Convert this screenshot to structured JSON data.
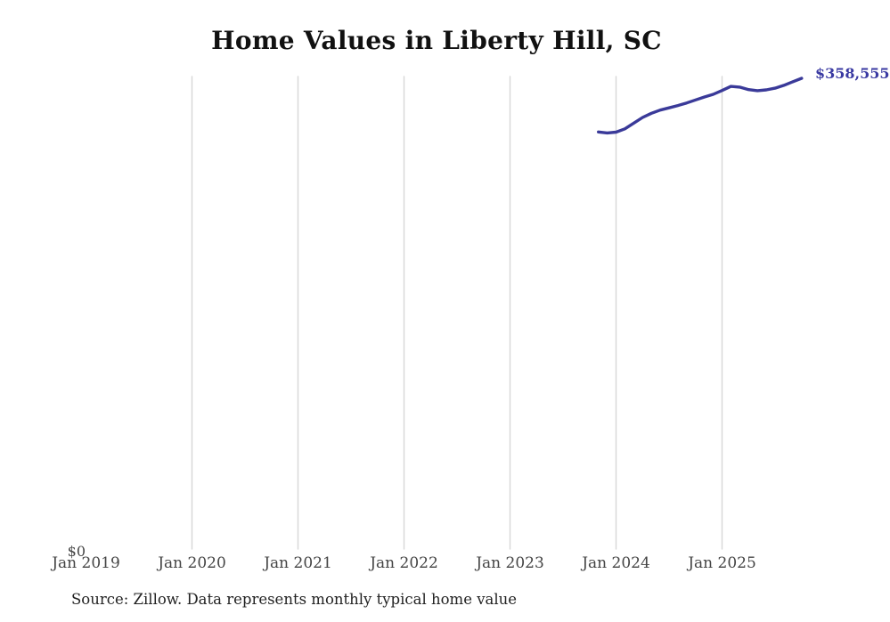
{
  "title": "Home Values in Liberty Hill, SC",
  "source_note": "Source: Zillow. Data represents monthly typical home value",
  "chart_data": {
    "type": "line",
    "title": "Home Values in Liberty Hill, SC",
    "x": [
      "2023-11",
      "2023-12",
      "2024-01",
      "2024-02",
      "2024-03",
      "2024-04",
      "2024-05",
      "2024-06",
      "2024-07",
      "2024-08",
      "2024-09",
      "2024-10",
      "2024-11",
      "2024-12",
      "2025-01",
      "2025-02",
      "2025-03",
      "2025-04",
      "2025-05",
      "2025-06",
      "2025-07",
      "2025-08",
      "2025-09",
      "2025-10"
    ],
    "values": [
      317900,
      317200,
      317800,
      320300,
      324600,
      328900,
      332100,
      334500,
      336200,
      337900,
      339900,
      342200,
      344400,
      346400,
      349300,
      352400,
      351900,
      350000,
      349200,
      349800,
      351100,
      353200,
      355900,
      358555
    ],
    "x_tick_labels": [
      "Jan 2019",
      "Jan 2020",
      "Jan 2021",
      "Jan 2022",
      "Jan 2023",
      "Jan 2024",
      "Jan 2025"
    ],
    "y_axis": {
      "min_label": "$0",
      "min_value": 0
    },
    "end_label": "$358,555",
    "grid": "vertical-only",
    "legend": "none",
    "colors": {
      "line": "#3a3a99",
      "end_label": "#3a3aa2",
      "gridline": "#d7d7d7",
      "tick_text": "#454545",
      "title_text": "#111111",
      "source_text": "#222222"
    }
  }
}
